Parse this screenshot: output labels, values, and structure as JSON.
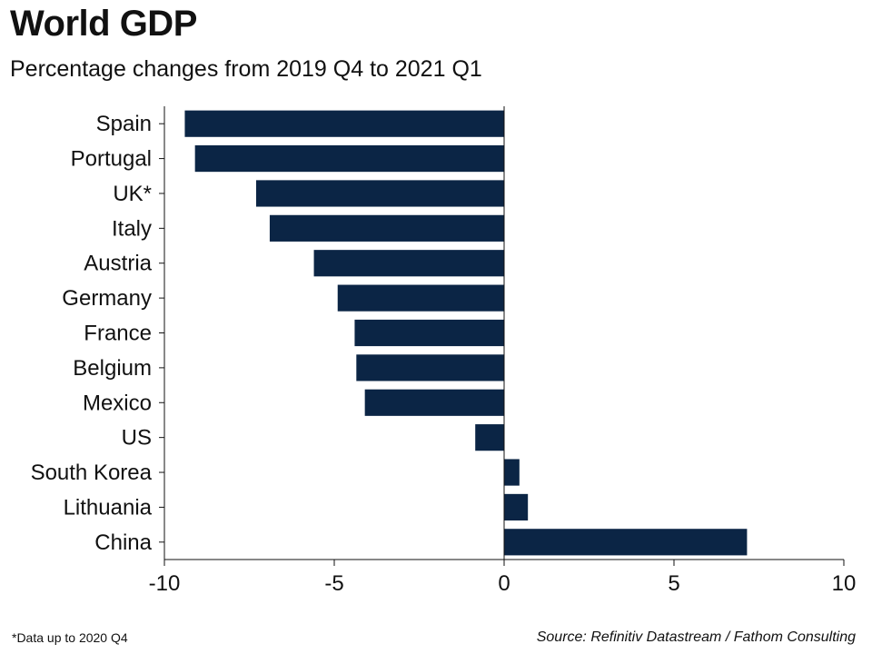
{
  "title": "World GDP",
  "subtitle": "Percentage changes from 2019 Q4 to 2021 Q1",
  "footnote": "*Data up to 2020 Q4",
  "source": "Source: Refinitiv Datastream / Fathom Consulting",
  "colors": {
    "bar": "#0b2545",
    "axis": "#111111"
  },
  "chart_data": {
    "type": "bar",
    "orientation": "horizontal",
    "categories": [
      "Spain",
      "Portugal",
      "UK*",
      "Italy",
      "Austria",
      "Germany",
      "France",
      "Belgium",
      "Mexico",
      "US",
      "South Korea",
      "Lithuania",
      "China"
    ],
    "values": [
      -9.4,
      -9.1,
      -7.3,
      -6.9,
      -5.6,
      -4.9,
      -4.4,
      -4.35,
      -4.1,
      -0.85,
      0.45,
      0.7,
      7.15
    ],
    "xlim": [
      -10,
      10
    ],
    "xticks": [
      "-10",
      "-5",
      "0",
      "5",
      "10"
    ],
    "grid": false,
    "legend": "none"
  }
}
